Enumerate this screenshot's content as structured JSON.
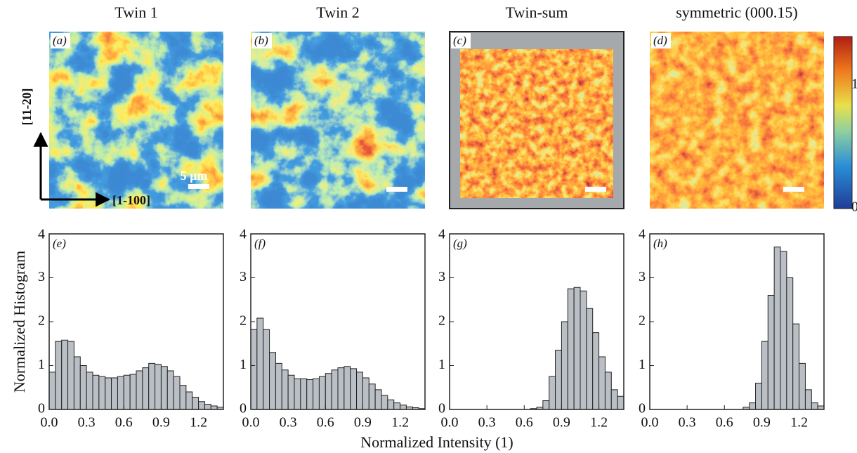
{
  "panels": [
    {
      "title": "Twin 1",
      "map_label": "(a)"
    },
    {
      "title": "Twin 2",
      "map_label": "(b)"
    },
    {
      "title": "Twin-sum",
      "map_label": "(c)"
    },
    {
      "title": "symmetric (000.15)",
      "map_label": "(d)"
    }
  ],
  "scale_bar": "5 µm",
  "directions": [
    "[11-20]",
    "[1-100]"
  ],
  "colorbar": {
    "labels": [
      "1",
      "0"
    ]
  },
  "xlabel": "Normalized Intensity (1)",
  "ylabel": "Normalized Histogram",
  "chart_data": [
    {
      "type": "histogram",
      "label": "(e)",
      "color": "#b9bfc4",
      "xlim": [
        0,
        1.4
      ],
      "ylim": [
        0,
        4
      ],
      "xticks": [
        {
          "value": 0,
          "label": "0.0"
        },
        0.3,
        0.6,
        0.9,
        1.2
      ],
      "yticks": [
        0,
        1,
        2,
        3,
        4
      ],
      "bins": [
        0,
        0.05,
        0.1,
        0.15,
        0.2,
        0.25,
        0.3,
        0.35,
        0.4,
        0.45,
        0.5,
        0.55,
        0.6,
        0.65,
        0.7,
        0.75,
        0.8,
        0.85,
        0.9,
        0.95,
        1.0,
        1.05,
        1.1,
        1.15,
        1.2,
        1.25,
        1.3,
        1.35,
        1.4
      ],
      "values": [
        0.85,
        1.55,
        1.58,
        1.55,
        1.2,
        1.0,
        0.85,
        0.78,
        0.75,
        0.72,
        0.72,
        0.75,
        0.78,
        0.8,
        0.88,
        0.95,
        1.05,
        1.03,
        0.98,
        0.88,
        0.75,
        0.55,
        0.4,
        0.28,
        0.18,
        0.12,
        0.08,
        0.05
      ]
    },
    {
      "type": "histogram",
      "label": "(f)",
      "color": "#b9bfc4",
      "xlim": [
        0,
        1.4
      ],
      "ylim": [
        0,
        4
      ],
      "xticks": [
        {
          "value": 0,
          "label": "0.0"
        },
        0.3,
        0.6,
        0.9,
        1.2
      ],
      "yticks": [
        0,
        1,
        2,
        3,
        4
      ],
      "bins": [
        0,
        0.05,
        0.1,
        0.15,
        0.2,
        0.25,
        0.3,
        0.35,
        0.4,
        0.45,
        0.5,
        0.55,
        0.6,
        0.65,
        0.7,
        0.75,
        0.8,
        0.85,
        0.9,
        0.95,
        1.0,
        1.05,
        1.1,
        1.15,
        1.2,
        1.25,
        1.3,
        1.35,
        1.4
      ],
      "values": [
        1.82,
        2.08,
        1.82,
        1.3,
        1.05,
        0.9,
        0.78,
        0.7,
        0.7,
        0.68,
        0.7,
        0.75,
        0.82,
        0.9,
        0.95,
        0.98,
        0.93,
        0.85,
        0.72,
        0.58,
        0.45,
        0.32,
        0.22,
        0.15,
        0.1,
        0.06,
        0.04,
        0.02
      ]
    },
    {
      "type": "histogram",
      "label": "(g)",
      "color": "#b9bfc4",
      "xlim": [
        0,
        1.4
      ],
      "ylim": [
        0,
        4
      ],
      "xticks": [
        {
          "value": 0,
          "label": "0.0"
        },
        0.3,
        0.6,
        0.9,
        1.2
      ],
      "yticks": [
        0,
        1,
        2,
        3,
        4
      ],
      "bins": [
        0,
        0.05,
        0.1,
        0.15,
        0.2,
        0.25,
        0.3,
        0.35,
        0.4,
        0.45,
        0.5,
        0.55,
        0.6,
        0.65,
        0.7,
        0.75,
        0.8,
        0.85,
        0.9,
        0.95,
        1.0,
        1.05,
        1.1,
        1.15,
        1.2,
        1.25,
        1.3,
        1.35,
        1.4
      ],
      "values": [
        0,
        0,
        0,
        0,
        0,
        0,
        0,
        0,
        0,
        0,
        0,
        0,
        0,
        0.02,
        0.05,
        0.2,
        0.75,
        1.35,
        2.0,
        2.75,
        2.78,
        2.7,
        2.3,
        1.75,
        1.2,
        0.85,
        0.45,
        0.3
      ]
    },
    {
      "type": "histogram",
      "label": "(h)",
      "color": "#b9bfc4",
      "xlim": [
        0,
        1.4
      ],
      "ylim": [
        0,
        4
      ],
      "xticks": [
        {
          "value": 0,
          "label": "0.0"
        },
        0.3,
        0.6,
        0.9,
        1.2
      ],
      "yticks": [
        0,
        1,
        2,
        3,
        4
      ],
      "bins": [
        0,
        0.05,
        0.1,
        0.15,
        0.2,
        0.25,
        0.3,
        0.35,
        0.4,
        0.45,
        0.5,
        0.55,
        0.6,
        0.65,
        0.7,
        0.75,
        0.8,
        0.85,
        0.9,
        0.95,
        1.0,
        1.05,
        1.1,
        1.15,
        1.2,
        1.25,
        1.3,
        1.35,
        1.4
      ],
      "values": [
        0,
        0,
        0,
        0,
        0,
        0,
        0,
        0,
        0,
        0,
        0,
        0,
        0,
        0,
        0,
        0.05,
        0.15,
        0.6,
        1.55,
        2.6,
        3.7,
        3.6,
        3.0,
        1.95,
        1.05,
        0.45,
        0.15,
        0.08
      ]
    }
  ]
}
